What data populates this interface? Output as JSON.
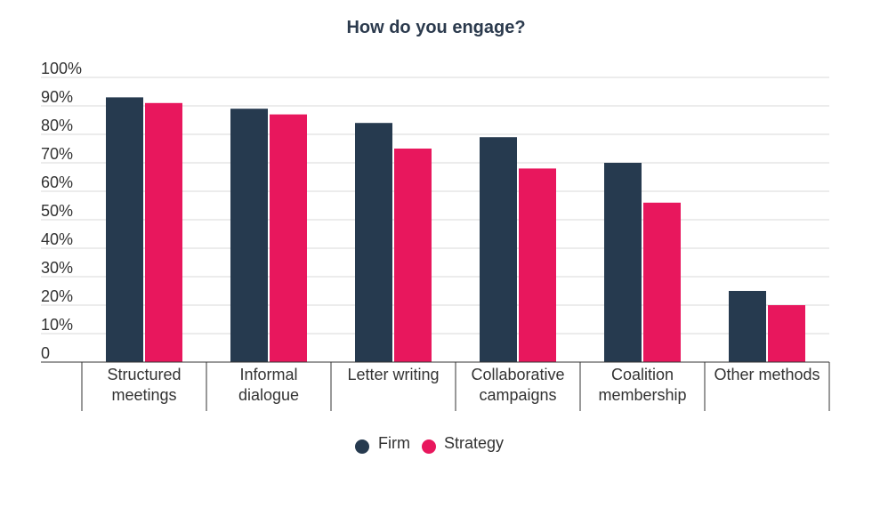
{
  "chart_data": {
    "type": "bar",
    "title": "How do you engage?",
    "categories": [
      [
        "Structured",
        "meetings"
      ],
      [
        "Informal",
        "dialogue"
      ],
      [
        "Letter writing"
      ],
      [
        "Collaborative",
        "campaigns"
      ],
      [
        "Coalition",
        "membership"
      ],
      [
        "Other methods"
      ]
    ],
    "series": [
      {
        "name": "Firm",
        "color": "#263a4f",
        "values": [
          93,
          89,
          84,
          79,
          70,
          25
        ]
      },
      {
        "name": "Strategy",
        "color": "#e8175d",
        "values": [
          91,
          87,
          75,
          68,
          56,
          20
        ]
      }
    ],
    "ylim": [
      0,
      100
    ],
    "yticks": [
      0,
      10,
      20,
      30,
      40,
      50,
      60,
      70,
      80,
      90,
      100
    ],
    "ytick_labels": [
      "0",
      "10%",
      "20%",
      "30%",
      "40%",
      "50%",
      "60%",
      "70%",
      "80%",
      "90%",
      "100%"
    ],
    "grid": true,
    "legend_position": "bottom-center"
  }
}
